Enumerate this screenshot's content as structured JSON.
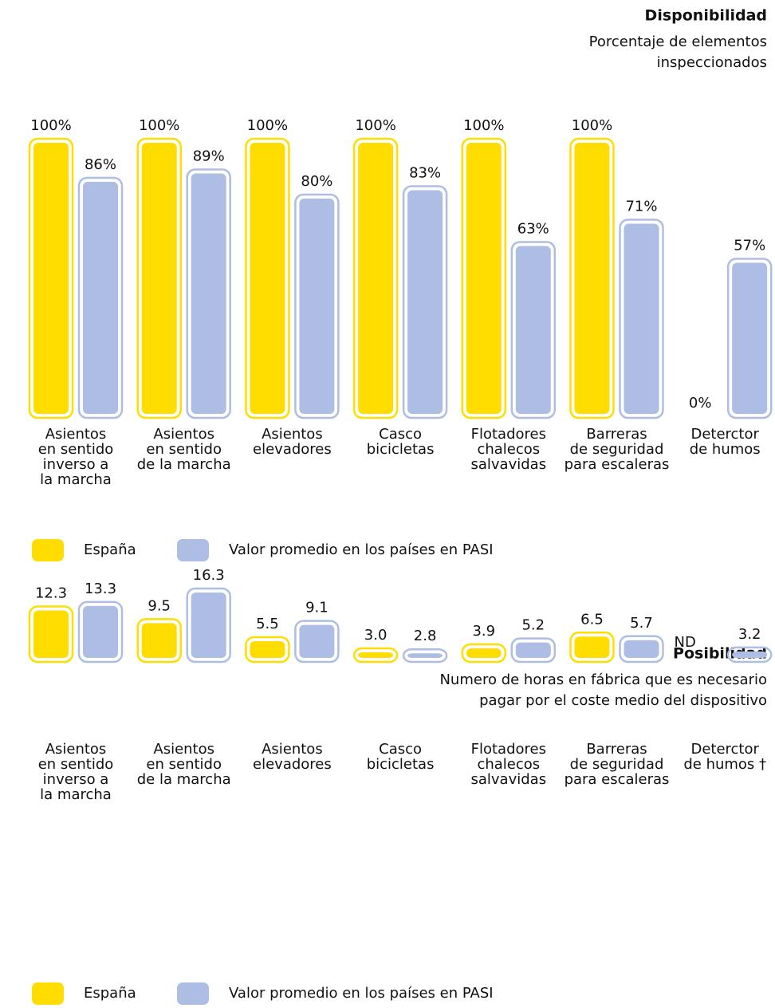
{
  "chart_data": [
    {
      "type": "bar",
      "title": "Disponibilidad",
      "subtitle": [
        "Porcentaje de elementos",
        "inspeccionados"
      ],
      "categories": [
        [
          "Asientos",
          "en sentido",
          "inverso a",
          "la marcha"
        ],
        [
          "Asientos",
          "en sentido",
          "de la marcha"
        ],
        [
          "Asientos",
          "elevadores"
        ],
        [
          "Casco",
          "bicicletas"
        ],
        [
          "Flotadores",
          "chalecos",
          "salvavidas"
        ],
        [
          "Barreras",
          "de seguridad",
          "para escaleras"
        ],
        [
          "Deterctor",
          "de humos"
        ]
      ],
      "series": [
        {
          "name": "España",
          "color": "#ffdd00",
          "values": [
            100,
            100,
            100,
            100,
            100,
            100,
            0
          ],
          "value_labels": [
            "100%",
            "100%",
            "100%",
            "100%",
            "100%",
            "100%",
            "0%"
          ]
        },
        {
          "name": "Valor promedio en los países en PASI",
          "color": "#aebde3",
          "values": [
            86,
            89,
            80,
            83,
            63,
            71,
            57
          ],
          "value_labels": [
            "86%",
            "89%",
            "80%",
            "83%",
            "63%",
            "71%",
            "57%"
          ]
        }
      ],
      "ylim": [
        0,
        100
      ]
    },
    {
      "type": "bar",
      "title": "Posibilidad",
      "subtitle": [
        "Numero de horas en fábrica que es necesario",
        "pagar por el coste medio del dispositivo"
      ],
      "categories": [
        [
          "Asientos",
          "en sentido",
          "inverso a",
          "la marcha"
        ],
        [
          "Asientos",
          "en sentido",
          "de la marcha"
        ],
        [
          "Asientos",
          "elevadores"
        ],
        [
          "Casco",
          "bicicletas"
        ],
        [
          "Flotadores",
          "chalecos",
          "salvavidas"
        ],
        [
          "Barreras",
          "de seguridad",
          "para escaleras"
        ],
        [
          "Deterctor",
          "de humos †"
        ]
      ],
      "series": [
        {
          "name": "España",
          "color": "#ffdd00",
          "values": [
            12.3,
            9.5,
            5.5,
            3.0,
            3.9,
            6.5,
            null
          ],
          "value_labels": [
            "12.3",
            "9.5",
            "5.5",
            "3.0",
            "3.9",
            "6.5",
            "ND"
          ]
        },
        {
          "name": "Valor promedio en los países en PASI",
          "color": "#aebde3",
          "values": [
            13.3,
            16.3,
            9.1,
            2.8,
            5.2,
            5.7,
            3.2
          ],
          "value_labels": [
            "13.3",
            "16.3",
            "9.1",
            "2.8",
            "5.2",
            "5.7",
            "3.2"
          ]
        }
      ],
      "ylim": [
        0,
        17
      ]
    }
  ]
}
